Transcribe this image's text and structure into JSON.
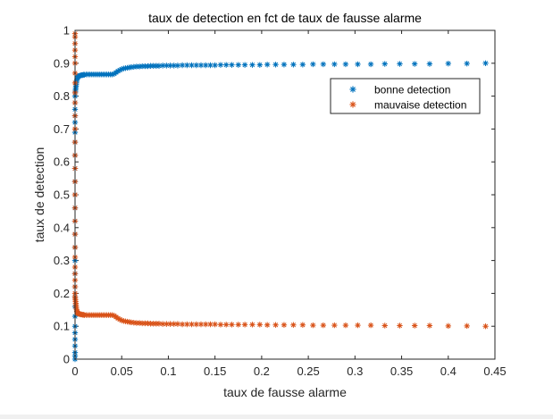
{
  "chart_data": {
    "type": "scatter",
    "title": "taux de detection en fct de taux de fausse alarme",
    "xlabel": "taux de fausse alarme",
    "ylabel": "taux de detection",
    "xlim": [
      0,
      0.45
    ],
    "ylim": [
      0,
      1
    ],
    "xticks": [
      0,
      0.05,
      0.1,
      0.15,
      0.2,
      0.25,
      0.3,
      0.35,
      0.4,
      0.45
    ],
    "xtick_labels": [
      "0",
      "0.05",
      "0.1",
      "0.15",
      "0.2",
      "0.25",
      "0.3",
      "0.35",
      "0.4",
      "0.45"
    ],
    "yticks": [
      0,
      0.1,
      0.2,
      0.3,
      0.4,
      0.5,
      0.6,
      0.7,
      0.8,
      0.9,
      1
    ],
    "ytick_labels": [
      "0",
      "0.1",
      "0.2",
      "0.3",
      "0.4",
      "0.5",
      "0.6",
      "0.7",
      "0.8",
      "0.9",
      "1"
    ],
    "grid": false,
    "legend_position": "top-right",
    "marker": "*",
    "series": [
      {
        "name": "bonne detection",
        "color": "#0072BD",
        "x": [
          0,
          0,
          0,
          0,
          0,
          0,
          0,
          0,
          0,
          0,
          0,
          0,
          0,
          0,
          0,
          0,
          0,
          0,
          0,
          0,
          0,
          0,
          0,
          0,
          0,
          0,
          0,
          0,
          0.0002,
          0.0004,
          0.0006,
          0.0008,
          0.001,
          0.0012,
          0.0014,
          0.0017,
          0.002,
          0.0025,
          0.003,
          0.0035,
          0.004,
          0.005,
          0.006,
          0.007,
          0.008,
          0.009,
          0.01,
          0.012,
          0.014,
          0.016,
          0.018,
          0.02,
          0.022,
          0.024,
          0.026,
          0.028,
          0.03,
          0.032,
          0.034,
          0.036,
          0.038,
          0.04,
          0.042,
          0.044,
          0.046,
          0.048,
          0.05,
          0.052,
          0.054,
          0.056,
          0.058,
          0.06,
          0.063,
          0.066,
          0.069,
          0.072,
          0.075,
          0.078,
          0.081,
          0.084,
          0.087,
          0.09,
          0.094,
          0.098,
          0.102,
          0.106,
          0.11,
          0.115,
          0.12,
          0.125,
          0.13,
          0.135,
          0.14,
          0.145,
          0.15,
          0.156,
          0.162,
          0.168,
          0.175,
          0.182,
          0.19,
          0.198,
          0.206,
          0.215,
          0.224,
          0.234,
          0.244,
          0.255,
          0.266,
          0.278,
          0.29,
          0.303,
          0.317,
          0.332,
          0.348,
          0.364,
          0.38,
          0.4,
          0.42,
          0.44
        ],
        "y": [
          0,
          0.01,
          0.02,
          0.04,
          0.06,
          0.08,
          0.1,
          0.13,
          0.16,
          0.19,
          0.22,
          0.26,
          0.3,
          0.34,
          0.38,
          0.42,
          0.46,
          0.5,
          0.54,
          0.58,
          0.62,
          0.66,
          0.69,
          0.72,
          0.74,
          0.76,
          0.78,
          0.8,
          0.81,
          0.815,
          0.82,
          0.825,
          0.83,
          0.835,
          0.84,
          0.845,
          0.85,
          0.855,
          0.858,
          0.86,
          0.861,
          0.862,
          0.863,
          0.864,
          0.864,
          0.865,
          0.865,
          0.866,
          0.866,
          0.866,
          0.866,
          0.866,
          0.866,
          0.866,
          0.866,
          0.866,
          0.866,
          0.866,
          0.866,
          0.866,
          0.866,
          0.866,
          0.868,
          0.872,
          0.876,
          0.879,
          0.882,
          0.884,
          0.885,
          0.886,
          0.887,
          0.888,
          0.889,
          0.89,
          0.89,
          0.891,
          0.891,
          0.891,
          0.892,
          0.892,
          0.892,
          0.892,
          0.893,
          0.893,
          0.893,
          0.893,
          0.893,
          0.894,
          0.894,
          0.894,
          0.894,
          0.894,
          0.894,
          0.894,
          0.894,
          0.895,
          0.895,
          0.895,
          0.895,
          0.895,
          0.895,
          0.895,
          0.896,
          0.896,
          0.896,
          0.896,
          0.896,
          0.897,
          0.897,
          0.897,
          0.897,
          0.897,
          0.897,
          0.898,
          0.898,
          0.898,
          0.898,
          0.899,
          0.899,
          0.9
        ]
      },
      {
        "name": "mauvaise detection",
        "color": "#D95319",
        "x": [
          0,
          0,
          0,
          0,
          0,
          0,
          0,
          0,
          0,
          0,
          0,
          0,
          0,
          0,
          0,
          0,
          0,
          0,
          0,
          0,
          0,
          0,
          0,
          0,
          0,
          0,
          0,
          0,
          0.0002,
          0.0004,
          0.0006,
          0.0008,
          0.001,
          0.0012,
          0.0014,
          0.0017,
          0.002,
          0.0025,
          0.003,
          0.0035,
          0.004,
          0.005,
          0.006,
          0.007,
          0.008,
          0.009,
          0.01,
          0.012,
          0.014,
          0.016,
          0.018,
          0.02,
          0.022,
          0.024,
          0.026,
          0.028,
          0.03,
          0.032,
          0.034,
          0.036,
          0.038,
          0.04,
          0.042,
          0.044,
          0.046,
          0.048,
          0.05,
          0.052,
          0.054,
          0.056,
          0.058,
          0.06,
          0.063,
          0.066,
          0.069,
          0.072,
          0.075,
          0.078,
          0.081,
          0.084,
          0.087,
          0.09,
          0.094,
          0.098,
          0.102,
          0.106,
          0.11,
          0.115,
          0.12,
          0.125,
          0.13,
          0.135,
          0.14,
          0.145,
          0.15,
          0.156,
          0.162,
          0.168,
          0.175,
          0.182,
          0.19,
          0.198,
          0.206,
          0.215,
          0.224,
          0.234,
          0.244,
          0.255,
          0.266,
          0.278,
          0.29,
          0.303,
          0.317,
          0.332,
          0.348,
          0.364,
          0.38,
          0.4,
          0.42,
          0.44
        ],
        "y": [
          0.99,
          0.98,
          0.96,
          0.94,
          0.92,
          0.9,
          0.87,
          0.84,
          0.81,
          0.78,
          0.74,
          0.7,
          0.66,
          0.62,
          0.58,
          0.54,
          0.5,
          0.46,
          0.42,
          0.38,
          0.34,
          0.31,
          0.28,
          0.26,
          0.24,
          0.22,
          0.2,
          0.19,
          0.185,
          0.18,
          0.175,
          0.17,
          0.165,
          0.16,
          0.155,
          0.15,
          0.145,
          0.142,
          0.14,
          0.139,
          0.138,
          0.137,
          0.136,
          0.136,
          0.135,
          0.135,
          0.134,
          0.134,
          0.134,
          0.134,
          0.134,
          0.134,
          0.134,
          0.134,
          0.134,
          0.134,
          0.134,
          0.134,
          0.134,
          0.134,
          0.134,
          0.134,
          0.132,
          0.128,
          0.124,
          0.121,
          0.118,
          0.116,
          0.115,
          0.114,
          0.113,
          0.112,
          0.111,
          0.11,
          0.11,
          0.109,
          0.109,
          0.109,
          0.108,
          0.108,
          0.108,
          0.108,
          0.107,
          0.107,
          0.107,
          0.107,
          0.107,
          0.106,
          0.106,
          0.106,
          0.106,
          0.106,
          0.106,
          0.106,
          0.106,
          0.105,
          0.105,
          0.105,
          0.105,
          0.105,
          0.105,
          0.105,
          0.104,
          0.104,
          0.104,
          0.104,
          0.104,
          0.103,
          0.103,
          0.103,
          0.103,
          0.103,
          0.103,
          0.102,
          0.102,
          0.102,
          0.102,
          0.101,
          0.101,
          0.1
        ]
      }
    ]
  }
}
